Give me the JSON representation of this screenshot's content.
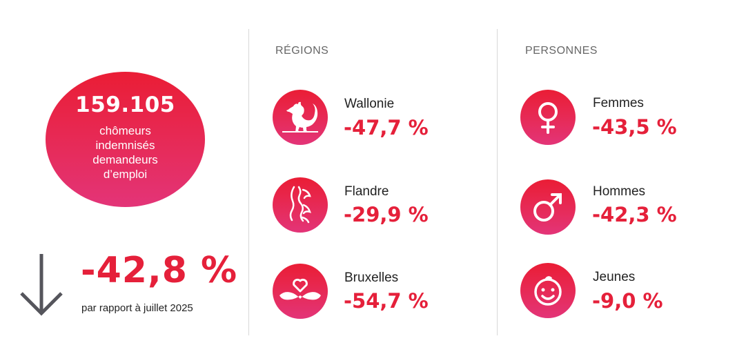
{
  "summary": {
    "count": "159.105",
    "description": [
      "chômeurs",
      "indemnisés",
      "demandeurs",
      "d’emploi"
    ],
    "change": "-42,8 %",
    "comparison": "par rapport à juillet 2025"
  },
  "regions": {
    "title": "RÉGIONS",
    "items": [
      {
        "label": "Wallonie",
        "value": "-47,7 %",
        "icon": "rooster-icon"
      },
      {
        "label": "Flandre",
        "value": "-29,9 %",
        "icon": "lion-icon"
      },
      {
        "label": "Bruxelles",
        "value": "-54,7 %",
        "icon": "iris-heart-icon"
      }
    ]
  },
  "persons": {
    "title": "PERSONNES",
    "items": [
      {
        "label": "Femmes",
        "value": "-43,5 %",
        "icon": "female-symbol-icon"
      },
      {
        "label": "Hommes",
        "value": "-42,3 %",
        "icon": "male-symbol-icon"
      },
      {
        "label": "Jeunes",
        "value": "-9,0  %",
        "icon": "child-face-icon"
      }
    ]
  },
  "colors": {
    "accent": "#e5203a",
    "gradient_top": "#ea1d35",
    "gradient_bottom": "#e33478"
  }
}
